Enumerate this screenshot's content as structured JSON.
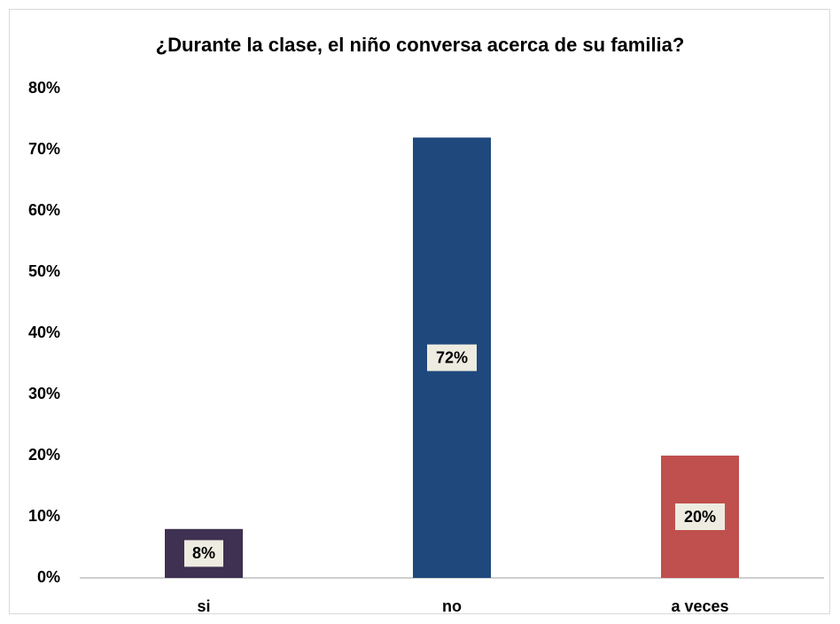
{
  "chart_data": {
    "type": "bar",
    "title": "¿Durante la clase, el niño conversa acerca de su familia?",
    "categories": [
      "si",
      "no",
      "a veces"
    ],
    "values": [
      8,
      72,
      20
    ],
    "value_labels": [
      "8%",
      "72%",
      "20%"
    ],
    "colors": [
      "#3f3151",
      "#1f497d",
      "#c0504d"
    ],
    "ylim": [
      0,
      80
    ],
    "yticks": [
      {
        "value": 0,
        "label": "0%"
      },
      {
        "value": 10,
        "label": "10%"
      },
      {
        "value": 20,
        "label": "20%"
      },
      {
        "value": 30,
        "label": "30%"
      },
      {
        "value": 40,
        "label": "40%"
      },
      {
        "value": 50,
        "label": "50%"
      },
      {
        "value": 60,
        "label": "60%"
      },
      {
        "value": 70,
        "label": "70%"
      },
      {
        "value": 80,
        "label": "80%"
      }
    ],
    "grid": false
  }
}
